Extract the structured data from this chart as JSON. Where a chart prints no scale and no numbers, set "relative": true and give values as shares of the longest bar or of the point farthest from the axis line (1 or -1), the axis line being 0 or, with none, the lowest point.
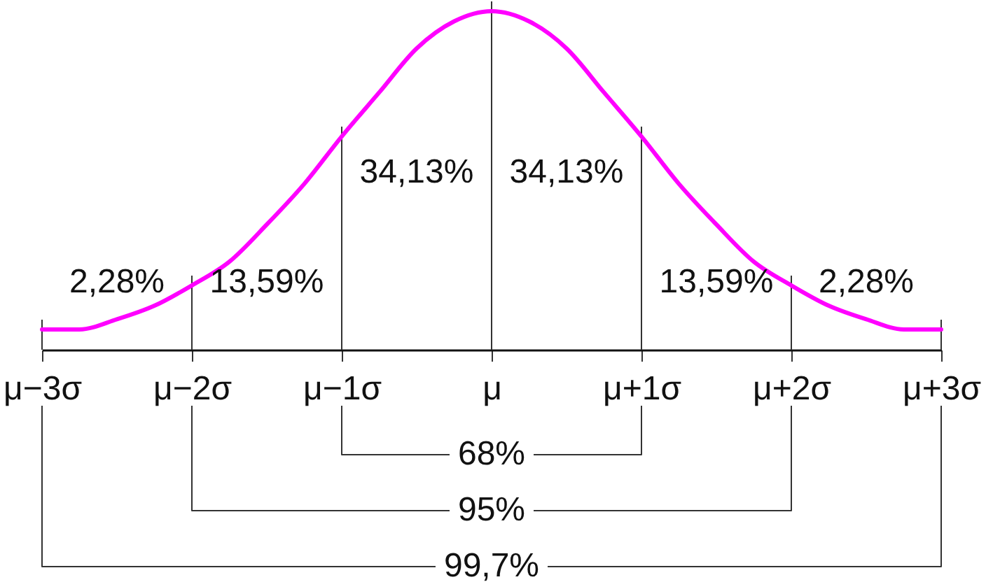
{
  "chart_data": {
    "type": "line",
    "relative": true,
    "categories": [
      "μ−3σ",
      null,
      null,
      null,
      "μ−2σ",
      null,
      null,
      null,
      "μ−1σ",
      null,
      null,
      null,
      "μ",
      null,
      null,
      null,
      "μ+1σ",
      null,
      null,
      null,
      "μ+2σ",
      null,
      null,
      null,
      "μ+3σ"
    ],
    "series": [
      {
        "color": "#ff00ff",
        "values": [
          0.06,
          0.06,
          0.09,
          0.13,
          0.19,
          0.26,
          0.37,
          0.49,
          0.63,
          0.76,
          0.89,
          0.97,
          1,
          0.97,
          0.89,
          0.76,
          0.63,
          0.49,
          0.37,
          0.26,
          0.19,
          0.13,
          0.09,
          0.06,
          0.06
        ]
      }
    ],
    "ref_lines": [
      {
        "axis": "x",
        "value": "μ−3σ"
      },
      {
        "axis": "x",
        "value": "μ−2σ"
      },
      {
        "axis": "x",
        "value": "μ−1σ"
      },
      {
        "axis": "x",
        "value": "μ"
      },
      {
        "axis": "x",
        "value": "μ+1σ"
      },
      {
        "axis": "x",
        "value": "μ+2σ"
      },
      {
        "axis": "x",
        "value": "μ+3σ"
      }
    ],
    "annotations": [
      "2,28%",
      "13,59%",
      "34,13%",
      "34,13%",
      "13,59%",
      "2,28%",
      "68%",
      "95%",
      "99,7%"
    ],
    "line_style": "solid"
  }
}
